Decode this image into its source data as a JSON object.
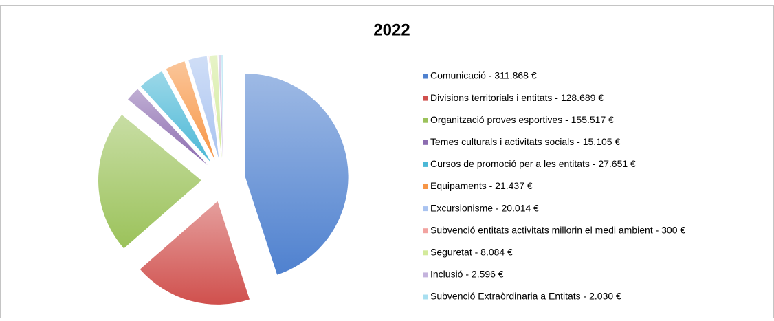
{
  "chart_data": {
    "type": "pie",
    "title": "2022",
    "categories": [
      "Comunicació - 311.868 €",
      "Divisions territorials i entitats - 128.689 €",
      "Organització proves esportives - 155.517 €",
      "Temes culturals i activitats socials - 15.105 €",
      "Cursos de promoció per a les entitats - 27.651 €",
      "Equipaments - 21.437 €",
      "Excursionisme - 20.014 €",
      "Subvenció entitats activitats millorin el medi ambient - 300 €",
      "Seguretat - 8.084 €",
      "Inclusió - 2.596 €",
      "Subvenció Extraòrdinaria a Entitats - 2.030 €"
    ],
    "values": [
      311868,
      128689,
      155517,
      15105,
      27651,
      21437,
      20014,
      300,
      8084,
      2596,
      2030
    ],
    "colors": [
      "#4f81cf",
      "#d0504d",
      "#9bc25a",
      "#8c6cb0",
      "#4bb8d6",
      "#f79646",
      "#a9c3f0",
      "#f2a3a0",
      "#d3ea9b",
      "#c4b3dd",
      "#a8dff0"
    ],
    "explode": true
  }
}
